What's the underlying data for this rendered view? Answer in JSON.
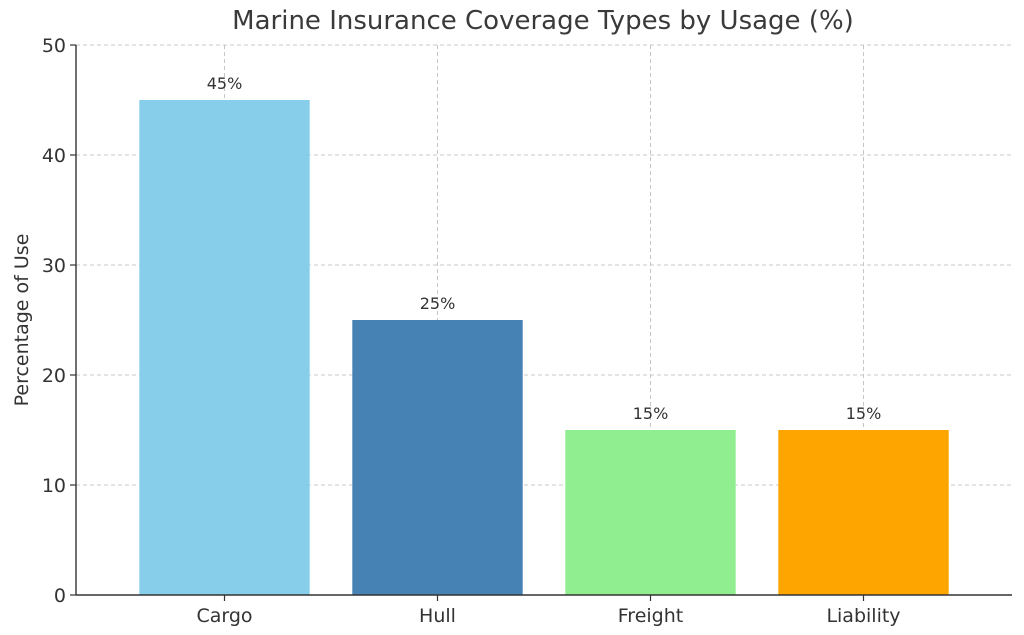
{
  "chart_data": {
    "type": "bar",
    "title": "Marine Insurance Coverage Types by Usage (%)",
    "xlabel": "",
    "ylabel": "Percentage of Use",
    "categories": [
      "Cargo",
      "Hull",
      "Freight",
      "Liability"
    ],
    "values": [
      45,
      25,
      15,
      15
    ],
    "value_labels": [
      "45%",
      "25%",
      "15%",
      "15%"
    ],
    "colors": [
      "#87CEEB",
      "#4682B4",
      "#90EE90",
      "#FFA500"
    ],
    "ylim": [
      0,
      50
    ],
    "yticks": [
      0,
      10,
      20,
      30,
      40,
      50
    ],
    "grid": true
  }
}
